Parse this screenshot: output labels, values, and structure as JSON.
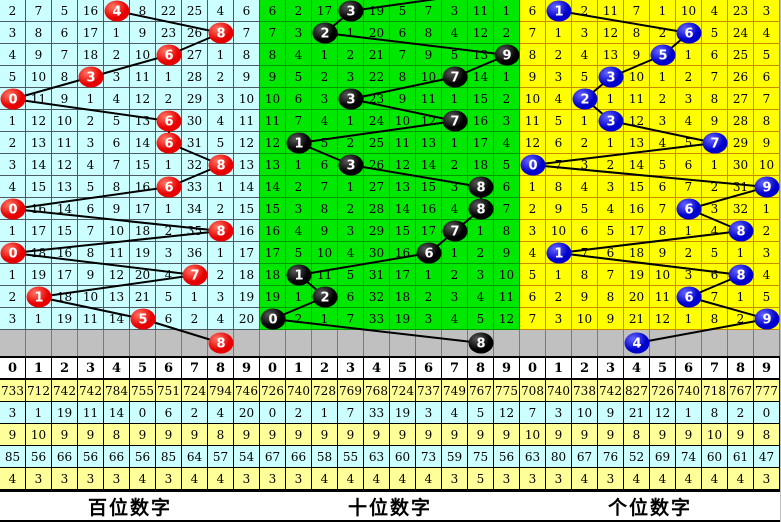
{
  "digit_headers": [
    "0",
    "1",
    "2",
    "3",
    "4",
    "5",
    "6",
    "7",
    "8",
    "9"
  ],
  "styles": {
    "board_bg": "#c0c0c0",
    "gray_row_bg": "#c0c0c0",
    "header_bg": "#ffffff",
    "title_bg": "#ffffff",
    "stat_row_colors": [
      "#ffff99",
      "#ccffff",
      "#ffff99",
      "#ccffff",
      "#ffff99"
    ],
    "trend_line_color": "#000000"
  },
  "chart_data": [
    {
      "type": "table",
      "title": "百位数字",
      "cell_bg": "#ccffff",
      "grid_line": "#4c5a66",
      "ball_color": "#e60000",
      "ball_highlight": "#ff7766",
      "columns": [
        "0",
        "1",
        "2",
        "3",
        "4",
        "5",
        "6",
        "7",
        "8",
        "9"
      ],
      "rows": [
        [
          "2",
          "7",
          "5",
          "16",
          "4",
          "8",
          "22",
          "25",
          "4",
          "6"
        ],
        [
          "3",
          "8",
          "6",
          "17",
          "1",
          "9",
          "23",
          "26",
          "8",
          "7"
        ],
        [
          "4",
          "9",
          "7",
          "18",
          "2",
          "10",
          "6",
          "27",
          "1",
          "8"
        ],
        [
          "5",
          "10",
          "8",
          "3",
          "3",
          "11",
          "1",
          "28",
          "2",
          "9"
        ],
        [
          "0",
          "11",
          "9",
          "1",
          "4",
          "12",
          "2",
          "29",
          "3",
          "10"
        ],
        [
          "1",
          "12",
          "10",
          "2",
          "5",
          "13",
          "6",
          "30",
          "4",
          "11"
        ],
        [
          "2",
          "13",
          "11",
          "3",
          "6",
          "14",
          "6",
          "31",
          "5",
          "12"
        ],
        [
          "3",
          "14",
          "12",
          "4",
          "7",
          "15",
          "1",
          "32",
          "8",
          "13"
        ],
        [
          "4",
          "15",
          "13",
          "5",
          "8",
          "16",
          "6",
          "33",
          "1",
          "14"
        ],
        [
          "0",
          "16",
          "14",
          "6",
          "9",
          "17",
          "1",
          "34",
          "2",
          "15"
        ],
        [
          "1",
          "17",
          "15",
          "7",
          "10",
          "18",
          "2",
          "35",
          "8",
          "16"
        ],
        [
          "0",
          "18",
          "16",
          "8",
          "11",
          "19",
          "3",
          "36",
          "1",
          "17"
        ],
        [
          "1",
          "19",
          "17",
          "9",
          "12",
          "20",
          "4",
          "7",
          "2",
          "18"
        ],
        [
          "2",
          "1",
          "18",
          "10",
          "13",
          "21",
          "5",
          "1",
          "3",
          "19"
        ],
        [
          "3",
          "1",
          "19",
          "11",
          "14",
          "5",
          "6",
          "2",
          "4",
          "20"
        ]
      ],
      "trend_ball_columns": [
        4,
        8,
        6,
        3,
        0,
        6,
        6,
        8,
        6,
        0,
        8,
        0,
        7,
        1,
        5
      ],
      "pending_ball_column": 8,
      "entry_from_column": null,
      "stats_rows": [
        [
          "733",
          "712",
          "742",
          "742",
          "784",
          "755",
          "751",
          "724",
          "794",
          "746"
        ],
        [
          "3",
          "1",
          "19",
          "11",
          "14",
          "0",
          "6",
          "2",
          "4",
          "20"
        ],
        [
          "9",
          "10",
          "9",
          "9",
          "8",
          "9",
          "9",
          "9",
          "8",
          "9"
        ],
        [
          "85",
          "56",
          "66",
          "56",
          "66",
          "56",
          "85",
          "64",
          "57",
          "54"
        ],
        [
          "4",
          "3",
          "3",
          "3",
          "3",
          "4",
          "3",
          "4",
          "4",
          "3"
        ]
      ]
    },
    {
      "type": "table",
      "title": "十位数字",
      "cell_bg": "#00e800",
      "grid_line": "#009900",
      "ball_color": "#000000",
      "ball_highlight": "#5a5a5a",
      "columns": [
        "0",
        "1",
        "2",
        "3",
        "4",
        "5",
        "6",
        "7",
        "8",
        "9"
      ],
      "rows": [
        [
          "6",
          "2",
          "17",
          "3",
          "19",
          "5",
          "7",
          "3",
          "11",
          "1"
        ],
        [
          "7",
          "3",
          "2",
          "1",
          "20",
          "6",
          "8",
          "4",
          "12",
          "2"
        ],
        [
          "8",
          "4",
          "1",
          "2",
          "21",
          "7",
          "9",
          "5",
          "13",
          "9"
        ],
        [
          "9",
          "5",
          "2",
          "3",
          "22",
          "8",
          "10",
          "7",
          "14",
          "1"
        ],
        [
          "10",
          "6",
          "3",
          "3",
          "23",
          "9",
          "11",
          "1",
          "15",
          "2"
        ],
        [
          "11",
          "7",
          "4",
          "1",
          "24",
          "10",
          "12",
          "7",
          "16",
          "3"
        ],
        [
          "12",
          "1",
          "5",
          "2",
          "25",
          "11",
          "13",
          "1",
          "17",
          "4"
        ],
        [
          "13",
          "1",
          "6",
          "3",
          "26",
          "12",
          "14",
          "2",
          "18",
          "5"
        ],
        [
          "14",
          "2",
          "7",
          "1",
          "27",
          "13",
          "15",
          "3",
          "8",
          "6"
        ],
        [
          "15",
          "3",
          "8",
          "2",
          "28",
          "14",
          "16",
          "4",
          "8",
          "7"
        ],
        [
          "16",
          "4",
          "9",
          "3",
          "29",
          "15",
          "17",
          "7",
          "1",
          "8"
        ],
        [
          "17",
          "5",
          "10",
          "4",
          "30",
          "16",
          "6",
          "1",
          "2",
          "9"
        ],
        [
          "18",
          "1",
          "11",
          "5",
          "31",
          "17",
          "1",
          "2",
          "3",
          "10"
        ],
        [
          "19",
          "1",
          "2",
          "6",
          "32",
          "18",
          "2",
          "3",
          "4",
          "11"
        ],
        [
          "0",
          "2",
          "1",
          "7",
          "33",
          "19",
          "3",
          "4",
          "5",
          "12"
        ]
      ],
      "trend_ball_columns": [
        3,
        2,
        9,
        7,
        3,
        7,
        1,
        3,
        8,
        8,
        7,
        6,
        1,
        2,
        0
      ],
      "pending_ball_column": 8,
      "entry_from_column": 9,
      "stats_rows": [
        [
          "726",
          "740",
          "728",
          "769",
          "768",
          "724",
          "737",
          "749",
          "767",
          "775"
        ],
        [
          "0",
          "2",
          "1",
          "7",
          "33",
          "19",
          "3",
          "4",
          "5",
          "12"
        ],
        [
          "9",
          "9",
          "9",
          "9",
          "9",
          "9",
          "9",
          "9",
          "9",
          "9"
        ],
        [
          "67",
          "66",
          "58",
          "55",
          "63",
          "60",
          "73",
          "59",
          "75",
          "56"
        ],
        [
          "3",
          "3",
          "4",
          "4",
          "4",
          "4",
          "4",
          "3",
          "5",
          "3"
        ]
      ]
    },
    {
      "type": "table",
      "title": "个位数字",
      "cell_bg": "#ffff00",
      "grid_line": "#cc8a00",
      "ball_color": "#0000cc",
      "ball_highlight": "#6666ff",
      "columns": [
        "0",
        "1",
        "2",
        "3",
        "4",
        "5",
        "6",
        "7",
        "8",
        "9"
      ],
      "rows": [
        [
          "6",
          "1",
          "2",
          "11",
          "7",
          "1",
          "10",
          "4",
          "23",
          "3"
        ],
        [
          "7",
          "1",
          "3",
          "12",
          "8",
          "2",
          "6",
          "5",
          "24",
          "4"
        ],
        [
          "8",
          "2",
          "4",
          "13",
          "9",
          "5",
          "1",
          "6",
          "25",
          "5"
        ],
        [
          "9",
          "3",
          "5",
          "3",
          "10",
          "1",
          "2",
          "7",
          "26",
          "6"
        ],
        [
          "10",
          "4",
          "2",
          "1",
          "11",
          "2",
          "3",
          "8",
          "27",
          "7"
        ],
        [
          "11",
          "5",
          "1",
          "3",
          "12",
          "3",
          "4",
          "9",
          "28",
          "8"
        ],
        [
          "12",
          "6",
          "2",
          "1",
          "13",
          "4",
          "5",
          "7",
          "29",
          "9"
        ],
        [
          "0",
          "7",
          "3",
          "2",
          "14",
          "5",
          "6",
          "1",
          "30",
          "10"
        ],
        [
          "1",
          "8",
          "4",
          "3",
          "15",
          "6",
          "7",
          "2",
          "31",
          "9"
        ],
        [
          "2",
          "9",
          "5",
          "4",
          "16",
          "7",
          "6",
          "3",
          "32",
          "1"
        ],
        [
          "3",
          "10",
          "6",
          "5",
          "17",
          "8",
          "1",
          "4",
          "8",
          "2"
        ],
        [
          "4",
          "1",
          "7",
          "6",
          "18",
          "9",
          "2",
          "5",
          "1",
          "3"
        ],
        [
          "5",
          "1",
          "8",
          "7",
          "19",
          "10",
          "3",
          "6",
          "8",
          "4"
        ],
        [
          "6",
          "2",
          "9",
          "8",
          "20",
          "11",
          "6",
          "7",
          "1",
          "5"
        ],
        [
          "7",
          "3",
          "10",
          "9",
          "21",
          "12",
          "1",
          "8",
          "2",
          "9"
        ]
      ],
      "trend_ball_columns": [
        1,
        6,
        5,
        3,
        2,
        3,
        7,
        0,
        9,
        6,
        8,
        1,
        8,
        6,
        9
      ],
      "pending_ball_column": 4,
      "entry_from_column": null,
      "stats_rows": [
        [
          "708",
          "740",
          "738",
          "742",
          "827",
          "726",
          "740",
          "718",
          "767",
          "777"
        ],
        [
          "7",
          "3",
          "10",
          "9",
          "21",
          "12",
          "1",
          "8",
          "2",
          "0"
        ],
        [
          "10",
          "9",
          "9",
          "9",
          "8",
          "9",
          "9",
          "10",
          "9",
          "8"
        ],
        [
          "63",
          "80",
          "67",
          "76",
          "52",
          "69",
          "74",
          "60",
          "61",
          "47"
        ],
        [
          "3",
          "3",
          "4",
          "3",
          "4",
          "4",
          "4",
          "4",
          "4",
          "3"
        ]
      ]
    }
  ]
}
